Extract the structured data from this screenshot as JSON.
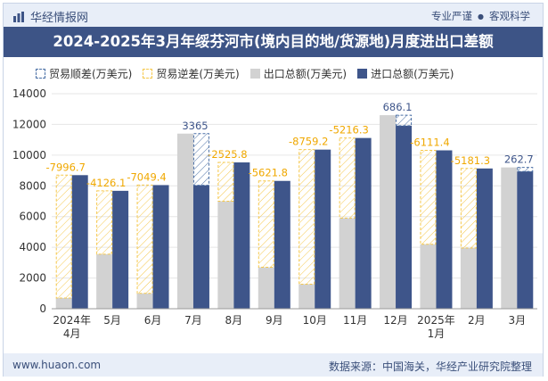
{
  "header": {
    "brand": "华经情报网",
    "tag1": "专业严谨",
    "separator": "●",
    "tag2": "客观科学"
  },
  "title": "2024-2025年3月年绥芬河市(境内目的地/货源地)月度进出口差额",
  "legend": {
    "surplus": "贸易顺差(万美元)",
    "deficit": "贸易逆差(万美元)",
    "export": "出口总额(万美元)",
    "import": "进口总额(万美元)"
  },
  "footer": {
    "site": "www.huaon.com",
    "source": "数据来源：中国海关，华经产业研究院整理"
  },
  "chart_data": {
    "type": "bar",
    "categories": [
      "2024年\n4月",
      "5月",
      "6月",
      "7月",
      "8月",
      "9月",
      "10月",
      "11月",
      "12月",
      "2025年\n1月",
      "2月",
      "3月"
    ],
    "series": [
      {
        "name": "出口总额(万美元)",
        "values": [
          700,
          3550,
          1000,
          11400,
          7000,
          2700,
          1600,
          5900,
          12600,
          4200,
          3950,
          9200
        ]
      },
      {
        "name": "进口总额(万美元)",
        "values": [
          8696.7,
          7676.1,
          8049.4,
          8035,
          9525.8,
          8321.8,
          10359.2,
          11116.3,
          11913.9,
          10311.4,
          9131.3,
          8937.3
        ]
      }
    ],
    "balance": [
      {
        "label": "-7996.7",
        "value": -7996.7
      },
      {
        "label": "-4126.1",
        "value": -4126.1
      },
      {
        "label": "-7049.4",
        "value": -7049.4
      },
      {
        "label": "3365",
        "value": 3365
      },
      {
        "label": "-2525.8",
        "value": -2525.8
      },
      {
        "label": "-5621.8",
        "value": -5621.8
      },
      {
        "label": "-8759.2",
        "value": -8759.2
      },
      {
        "label": "-5216.3",
        "value": -5216.3
      },
      {
        "label": "686.1",
        "value": 686.1
      },
      {
        "label": "-6111.4",
        "value": -6111.4
      },
      {
        "label": "-5181.3",
        "value": -5181.3
      },
      {
        "label": "262.7",
        "value": 262.7
      }
    ],
    "y_ticks": [
      "0",
      "2000",
      "4000",
      "6000",
      "8000",
      "10000",
      "12000",
      "14000"
    ],
    "ylim": [
      0,
      14000
    ],
    "grid": true,
    "legend_position": "top",
    "colors": {
      "export": "#d2d2d2",
      "import": "#3e558a",
      "deficit": "#f5c84c",
      "surplus": "#4a6fa5",
      "surplus_label": "#3e558a",
      "deficit_label": "#f0a800"
    }
  }
}
